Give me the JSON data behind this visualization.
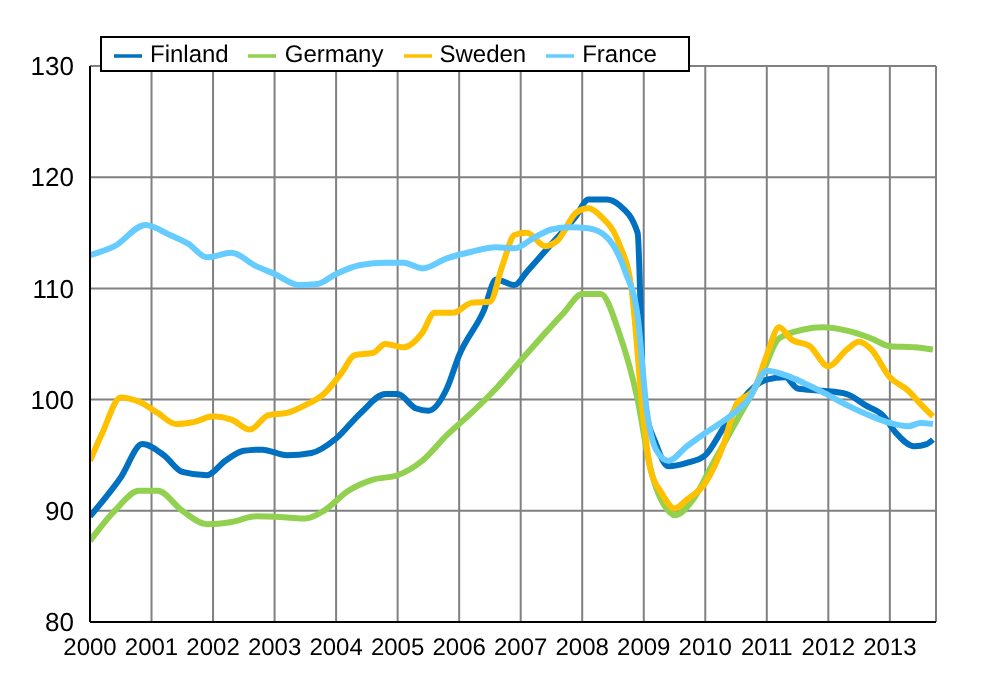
{
  "chart_data": {
    "type": "line",
    "xlim": [
      2000,
      2013.75
    ],
    "xticks": [
      2000,
      2001,
      2002,
      2003,
      2004,
      2005,
      2006,
      2007,
      2008,
      2009,
      2010,
      2011,
      2012,
      2013
    ],
    "ylim": [
      80,
      130
    ],
    "yticks": [
      80,
      90,
      100,
      110,
      120,
      130
    ],
    "grid": true,
    "legend": "top left",
    "series": [
      {
        "name": "Finland",
        "color": "#0070c0",
        "x": [
          2000,
          2000.5,
          2000.85,
          2001.2,
          2001.5,
          2001.9,
          2002.2,
          2002.5,
          2002.8,
          2003.2,
          2003.6,
          2004,
          2004.4,
          2004.8,
          2005,
          2005.3,
          2005.5,
          2005.8,
          2006,
          2006.4,
          2006.6,
          2006.9,
          2007.1,
          2007.5,
          2007.9,
          2008.1,
          2008.4,
          2008.6,
          2008.9,
          2009,
          2009.2,
          2009.4,
          2009.7,
          2010,
          2010.3,
          2010.6,
          2011,
          2011.3,
          2011.5,
          2011.9,
          2012.3,
          2012.6,
          2012.9,
          2013.1,
          2013.4,
          2013.6,
          2013.7
        ],
        "values": [
          89.5,
          93,
          96,
          95,
          93.5,
          93.2,
          94.5,
          95.4,
          95.5,
          95,
          95.2,
          96.5,
          98.8,
          100.5,
          100.5,
          99.2,
          99,
          101,
          104,
          108,
          110.8,
          110.3,
          111.5,
          114,
          116.5,
          118,
          118,
          117.5,
          115,
          100,
          96,
          94,
          94.3,
          95,
          97.5,
          100,
          101.8,
          102,
          101,
          100.8,
          100.5,
          99.5,
          98.5,
          97,
          95.8,
          96,
          96.4
        ]
      },
      {
        "name": "Germany",
        "color": "#92d050",
        "x": [
          2000,
          2000.4,
          2000.8,
          2001.1,
          2001.5,
          2001.9,
          2002.3,
          2002.7,
          2003.2,
          2003.5,
          2003.8,
          2004.2,
          2004.6,
          2005,
          2005.4,
          2005.8,
          2006.2,
          2006.6,
          2007,
          2007.4,
          2007.7,
          2008,
          2008.3,
          2008.6,
          2008.9,
          2009.1,
          2009.4,
          2009.5,
          2009.8,
          2010.1,
          2010.5,
          2010.9,
          2011.2,
          2011.6,
          2011.9,
          2012.3,
          2012.7,
          2013,
          2013.4,
          2013.7
        ],
        "values": [
          87.3,
          90,
          91.8,
          91.8,
          90,
          88.8,
          89,
          89.5,
          89.4,
          89.3,
          90,
          91.8,
          92.8,
          93.2,
          94.5,
          96.8,
          98.8,
          101,
          103.5,
          106,
          107.8,
          109.5,
          109.5,
          106,
          100,
          94,
          90,
          89.6,
          91,
          94,
          98,
          102,
          105.5,
          106.3,
          106.5,
          106.2,
          105.5,
          104.8,
          104.7,
          104.5
        ]
      },
      {
        "name": "Sweden",
        "color": "#ffc000",
        "x": [
          2000,
          2000.2,
          2000.5,
          2000.8,
          2001.1,
          2001.4,
          2001.7,
          2002,
          2002.3,
          2002.6,
          2002.9,
          2003.2,
          2003.5,
          2003.8,
          2004.1,
          2004.3,
          2004.6,
          2004.8,
          2005.1,
          2005.4,
          2005.6,
          2005.9,
          2006.2,
          2006.5,
          2006.7,
          2006.9,
          2007.1,
          2007.4,
          2007.6,
          2007.9,
          2008.1,
          2008.3,
          2008.6,
          2008.8,
          2009,
          2009.1,
          2009.3,
          2009.5,
          2009.7,
          2010,
          2010.3,
          2010.5,
          2010.8,
          2011,
          2011.2,
          2011.4,
          2011.7,
          2012,
          2012.3,
          2012.5,
          2012.7,
          2013,
          2013.3,
          2013.5,
          2013.7
        ],
        "values": [
          94.5,
          97,
          100.2,
          99.8,
          98.8,
          97.8,
          98,
          98.5,
          98.2,
          97.3,
          98.6,
          98.8,
          99.5,
          100.5,
          102.5,
          104,
          104.2,
          105,
          104.7,
          106,
          107.8,
          107.8,
          108.7,
          108.8,
          112,
          114.8,
          115,
          113.8,
          114.3,
          116.8,
          117.2,
          116.5,
          114,
          110,
          98,
          94,
          91.5,
          90.2,
          91,
          92.5,
          96,
          99.5,
          101,
          104,
          106.5,
          105.4,
          104.8,
          103,
          104.5,
          105.2,
          104.5,
          102,
          100.8,
          99.6,
          98.5
        ]
      },
      {
        "name": "France",
        "color": "#66ccff",
        "x": [
          2000,
          2000.4,
          2000.9,
          2001.3,
          2001.6,
          2001.9,
          2002.3,
          2002.7,
          2003,
          2003.4,
          2003.7,
          2004,
          2004.4,
          2004.8,
          2005.1,
          2005.4,
          2005.8,
          2006.2,
          2006.6,
          2006.9,
          2007.2,
          2007.5,
          2007.8,
          2008.1,
          2008.4,
          2008.7,
          2008.9,
          2009.05,
          2009.2,
          2009.4,
          2009.7,
          2010,
          2010.4,
          2010.7,
          2011,
          2011.3,
          2011.6,
          2011.9,
          2012.3,
          2012.7,
          2013,
          2013.3,
          2013.5,
          2013.7
        ],
        "values": [
          113,
          113.8,
          115.7,
          114.8,
          114,
          112.8,
          113.2,
          112,
          111.3,
          110.3,
          110.4,
          111.3,
          112.1,
          112.3,
          112.3,
          111.8,
          112.7,
          113.3,
          113.7,
          113.6,
          114.5,
          115.3,
          115.5,
          115.4,
          114.6,
          111.5,
          107.5,
          99,
          95.5,
          94.5,
          95.8,
          97,
          98.5,
          100,
          102.6,
          102.2,
          101.5,
          100.7,
          99.5,
          98.5,
          97.9,
          97.6,
          97.9,
          97.8
        ]
      }
    ]
  }
}
